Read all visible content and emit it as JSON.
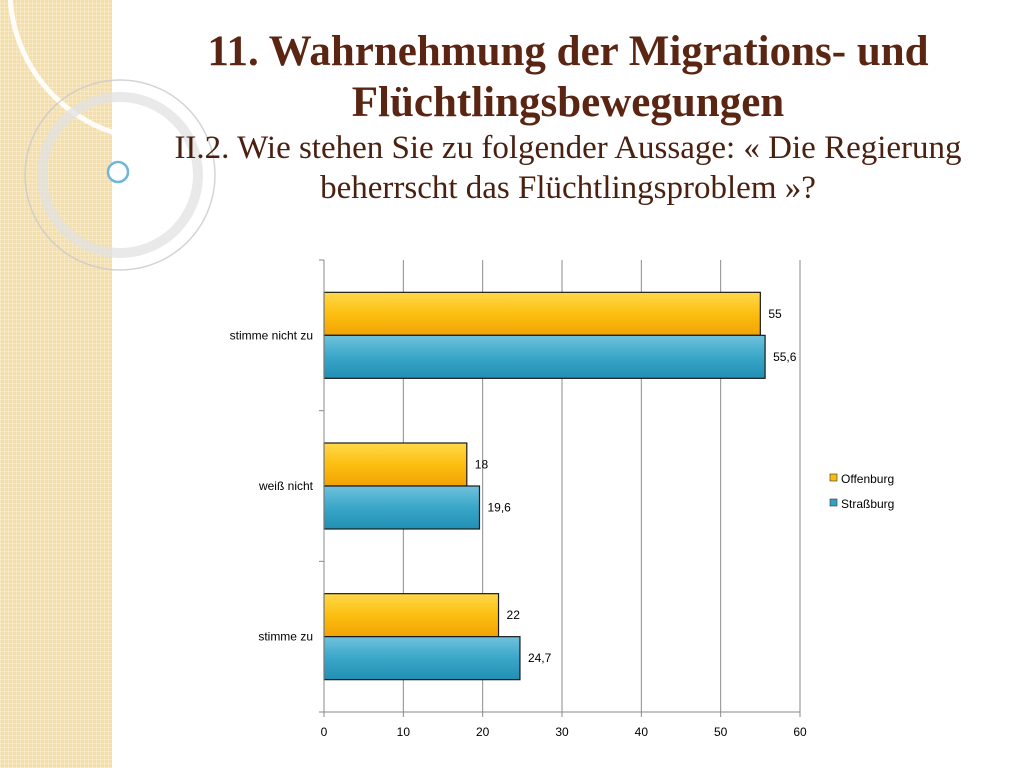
{
  "slide": {
    "title_line1": "11. Wahrnehmung der Migrations- und",
    "title_line2": "Flüchtlingsbewegungen",
    "subtitle_line1": "II.2. Wie stehen Sie zu folgender Aussage: « Die Regierung",
    "subtitle_line2": "beherrscht das Flüchtlingsproblem »?"
  },
  "colors": {
    "title": "#5a2512",
    "offenburg": "#f8bd0c",
    "strassburg": "#34a1c4"
  },
  "chart_data": {
    "type": "bar",
    "orientation": "horizontal",
    "categories": [
      "stimme nicht zu",
      "weiß nicht",
      "stimme zu"
    ],
    "series": [
      {
        "name": "Offenburg",
        "values": [
          55,
          18,
          22
        ],
        "labels": [
          "55",
          "18",
          "22"
        ]
      },
      {
        "name": "Straßburg",
        "values": [
          55.6,
          19.6,
          24.7
        ],
        "labels": [
          "55,6",
          "19,6",
          "24,7"
        ]
      }
    ],
    "xlim": [
      0,
      60
    ],
    "xticks": [
      0,
      10,
      20,
      30,
      40,
      50,
      60
    ],
    "grid": true,
    "legend": "right"
  }
}
